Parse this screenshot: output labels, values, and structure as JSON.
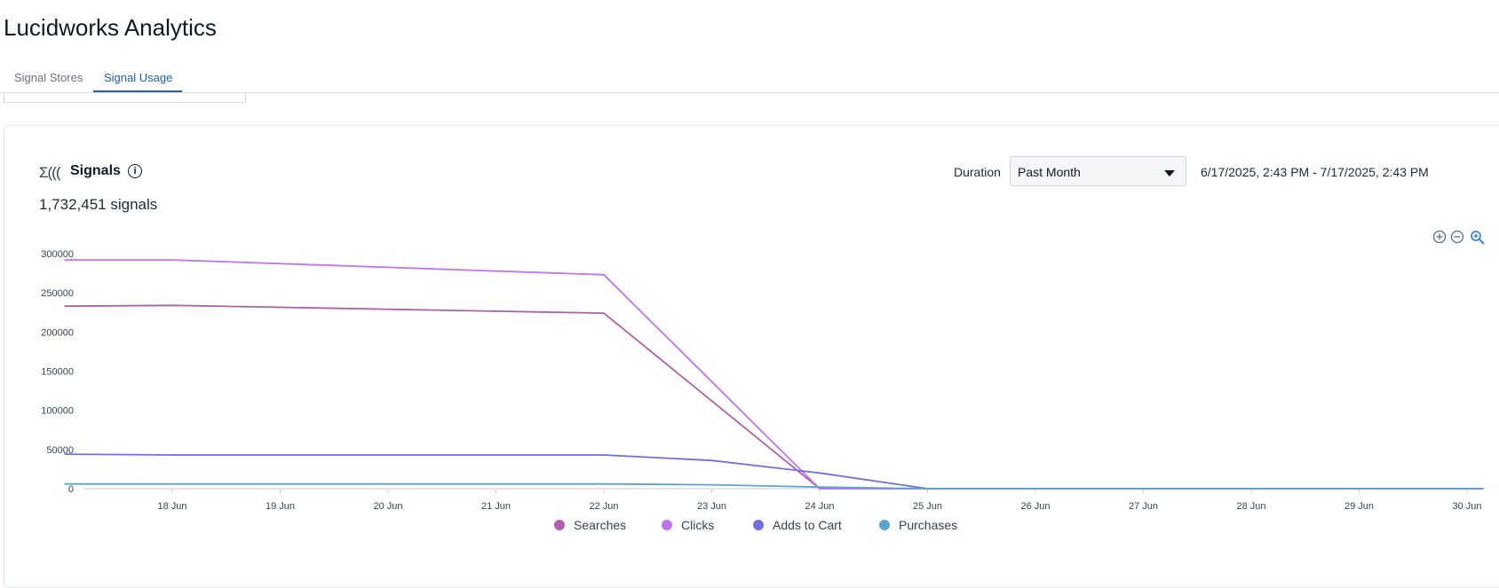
{
  "app": {
    "title": "Lucidworks Analytics"
  },
  "tabs": [
    {
      "label": "Signal Stores",
      "active": false
    },
    {
      "label": "Signal Usage",
      "active": true
    }
  ],
  "panel": {
    "icon": "signals-icon",
    "icon_glyph": "Σ(((",
    "title": "Signals",
    "info_icon": "info-icon",
    "total": "1,732,451 signals",
    "duration": {
      "label": "Duration",
      "selected": "Past Month",
      "range": "6/17/2025, 2:43 PM - 7/17/2025, 2:43 PM"
    },
    "toolbar": [
      "zoom-in-icon",
      "zoom-out-icon",
      "zoom-reset-icon"
    ]
  },
  "chart_data": {
    "type": "line",
    "x_axis_type": "date",
    "x_labels": [
      "18 Jun",
      "19 Jun",
      "20 Jun",
      "21 Jun",
      "22 Jun",
      "23 Jun",
      "24 Jun",
      "25 Jun",
      "26 Jun",
      "27 Jun",
      "28 Jun",
      "29 Jun",
      "30 Jun"
    ],
    "xlim": [
      "2025-06-17",
      "2025-06-30"
    ],
    "y_ticks": [
      "0",
      "50000",
      "100000",
      "150000",
      "200000",
      "250000",
      "300000"
    ],
    "ylim": [
      0,
      300000
    ],
    "grid": false,
    "legend_position": "bottom",
    "series": [
      {
        "name": "Searches",
        "color": "#b05fa8",
        "points": [
          [
            "2025-06-17",
            233000
          ],
          [
            "2025-06-18",
            234000
          ],
          [
            "2025-06-22",
            224000
          ],
          [
            "2025-06-24",
            0
          ],
          [
            "2025-06-25",
            0
          ],
          [
            "2025-06-30",
            0
          ]
        ]
      },
      {
        "name": "Clicks",
        "color": "#c074f0",
        "points": [
          [
            "2025-06-17",
            292000
          ],
          [
            "2025-06-18",
            292000
          ],
          [
            "2025-06-22",
            273000
          ],
          [
            "2025-06-24",
            0
          ],
          [
            "2025-06-25",
            0
          ],
          [
            "2025-06-30",
            0
          ]
        ]
      },
      {
        "name": "Adds to Cart",
        "color": "#6f6fe0",
        "points": [
          [
            "2025-06-17",
            44000
          ],
          [
            "2025-06-18",
            43000
          ],
          [
            "2025-06-22",
            43000
          ],
          [
            "2025-06-23",
            36000
          ],
          [
            "2025-06-24",
            20000
          ],
          [
            "2025-06-25",
            0
          ],
          [
            "2025-06-30",
            0
          ]
        ]
      },
      {
        "name": "Purchases",
        "color": "#5aa5cf",
        "points": [
          [
            "2025-06-17",
            6000
          ],
          [
            "2025-06-18",
            6000
          ],
          [
            "2025-06-22",
            6000
          ],
          [
            "2025-06-23",
            5000
          ],
          [
            "2025-06-24",
            2000
          ],
          [
            "2025-06-25",
            0
          ],
          [
            "2025-06-30",
            0
          ]
        ]
      }
    ]
  }
}
